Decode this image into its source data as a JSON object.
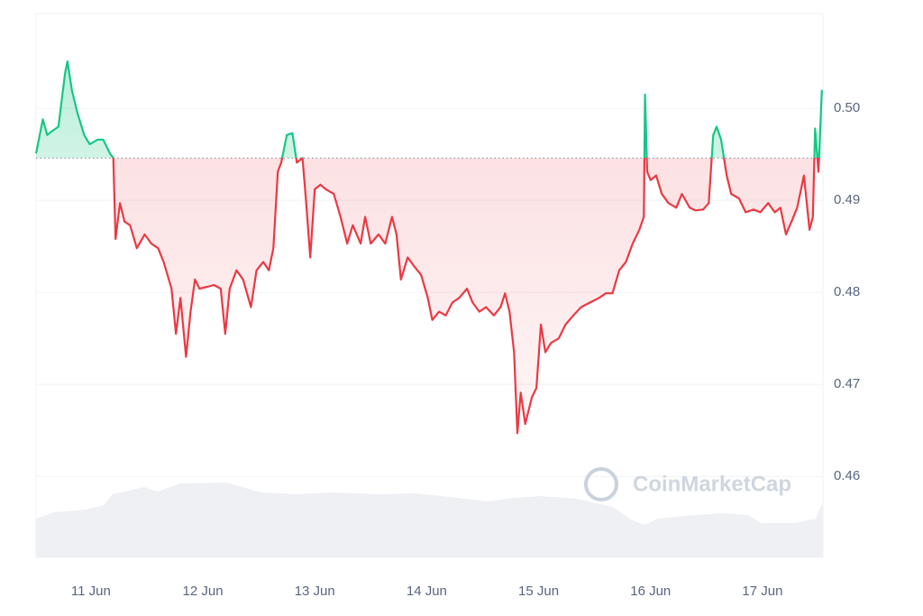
{
  "chart_data": {
    "type": "line",
    "watermark": "CoinMarketCap",
    "x": [
      10.51,
      10.57,
      10.61,
      10.65,
      10.71,
      10.77,
      10.79,
      10.83,
      10.88,
      10.94,
      10.99,
      11.06,
      11.11,
      11.17,
      11.2,
      11.22,
      11.26,
      11.3,
      11.35,
      11.41,
      11.48,
      11.54,
      11.6,
      11.65,
      11.72,
      11.76,
      11.8,
      11.85,
      11.89,
      11.93,
      11.97,
      12.04,
      12.1,
      12.16,
      12.2,
      12.24,
      12.3,
      12.36,
      12.43,
      12.48,
      12.54,
      12.59,
      12.63,
      12.67,
      12.7,
      12.75,
      12.8,
      12.84,
      12.89,
      12.92,
      12.96,
      13.0,
      13.05,
      13.1,
      13.17,
      13.23,
      13.29,
      13.34,
      13.41,
      13.45,
      13.5,
      13.57,
      13.63,
      13.69,
      13.73,
      13.77,
      13.83,
      13.89,
      13.95,
      14.01,
      14.05,
      14.11,
      14.17,
      14.23,
      14.29,
      14.36,
      14.41,
      14.47,
      14.53,
      14.6,
      14.66,
      14.7,
      14.74,
      14.78,
      14.81,
      14.84,
      14.88,
      14.94,
      14.98,
      15.02,
      15.06,
      15.11,
      15.18,
      15.24,
      15.31,
      15.38,
      15.46,
      15.54,
      15.6,
      15.66,
      15.72,
      15.78,
      15.84,
      15.9,
      15.94,
      15.95,
      15.97,
      16.0,
      16.05,
      16.1,
      16.16,
      16.23,
      16.28,
      16.35,
      16.4,
      16.47,
      16.52,
      16.56,
      16.59,
      16.63,
      16.68,
      16.72,
      16.79,
      16.85,
      16.92,
      16.98,
      17.05,
      17.11,
      17.16,
      17.21,
      17.26,
      17.31,
      17.37,
      17.42,
      17.45,
      17.47,
      17.5,
      17.53
    ],
    "values": [
      0.4951,
      0.4988,
      0.4971,
      0.4975,
      0.498,
      0.5039,
      0.5051,
      0.502,
      0.4995,
      0.4971,
      0.4961,
      0.4966,
      0.4966,
      0.4951,
      0.4946,
      0.4858,
      0.4897,
      0.4877,
      0.4873,
      0.4848,
      0.4863,
      0.4853,
      0.4848,
      0.4833,
      0.4804,
      0.4755,
      0.4794,
      0.473,
      0.4779,
      0.4814,
      0.4804,
      0.4806,
      0.4808,
      0.4804,
      0.4755,
      0.4804,
      0.4824,
      0.4814,
      0.4784,
      0.4824,
      0.4833,
      0.4824,
      0.4848,
      0.4931,
      0.4941,
      0.4971,
      0.4973,
      0.4941,
      0.4946,
      0.4902,
      0.4838,
      0.4912,
      0.4917,
      0.4912,
      0.4907,
      0.4882,
      0.4853,
      0.4873,
      0.4853,
      0.4882,
      0.4853,
      0.4863,
      0.4853,
      0.4882,
      0.4863,
      0.4814,
      0.4838,
      0.4828,
      0.4819,
      0.4794,
      0.477,
      0.4779,
      0.4775,
      0.4789,
      0.4794,
      0.4804,
      0.4789,
      0.4779,
      0.4784,
      0.4775,
      0.4784,
      0.4799,
      0.4779,
      0.4735,
      0.4647,
      0.4691,
      0.4657,
      0.4686,
      0.4696,
      0.4765,
      0.4735,
      0.4745,
      0.475,
      0.4765,
      0.4775,
      0.4784,
      0.4789,
      0.4794,
      0.4799,
      0.4799,
      0.4824,
      0.4833,
      0.4853,
      0.4868,
      0.4882,
      0.5015,
      0.4931,
      0.4922,
      0.4927,
      0.4907,
      0.4897,
      0.4892,
      0.4907,
      0.4892,
      0.4889,
      0.489,
      0.4897,
      0.4971,
      0.498,
      0.4966,
      0.4927,
      0.4907,
      0.4902,
      0.4887,
      0.489,
      0.4887,
      0.4897,
      0.4887,
      0.4892,
      0.4863,
      0.4877,
      0.4892,
      0.4927,
      0.4868,
      0.4882,
      0.4978,
      0.4931,
      0.502
    ],
    "baseline": 0.4946,
    "up_color": "#16c784",
    "down_color": "#ea3943",
    "xlim": [
      10.51,
      17.54
    ],
    "xticks": [
      {
        "value": 11,
        "label": "11 Jun"
      },
      {
        "value": 12,
        "label": "12 Jun"
      },
      {
        "value": 13,
        "label": "13 Jun"
      },
      {
        "value": 14,
        "label": "14 Jun"
      },
      {
        "value": 15,
        "label": "15 Jun"
      },
      {
        "value": 16,
        "label": "16 Jun"
      },
      {
        "value": 17,
        "label": "17 Jun"
      }
    ],
    "ylim": [
      0.4512,
      0.5103
    ],
    "yticks": [
      0.46,
      0.47,
      0.48,
      0.49,
      {
        "value": 0.5,
        "label": "0.50"
      }
    ],
    "grid": true
  }
}
